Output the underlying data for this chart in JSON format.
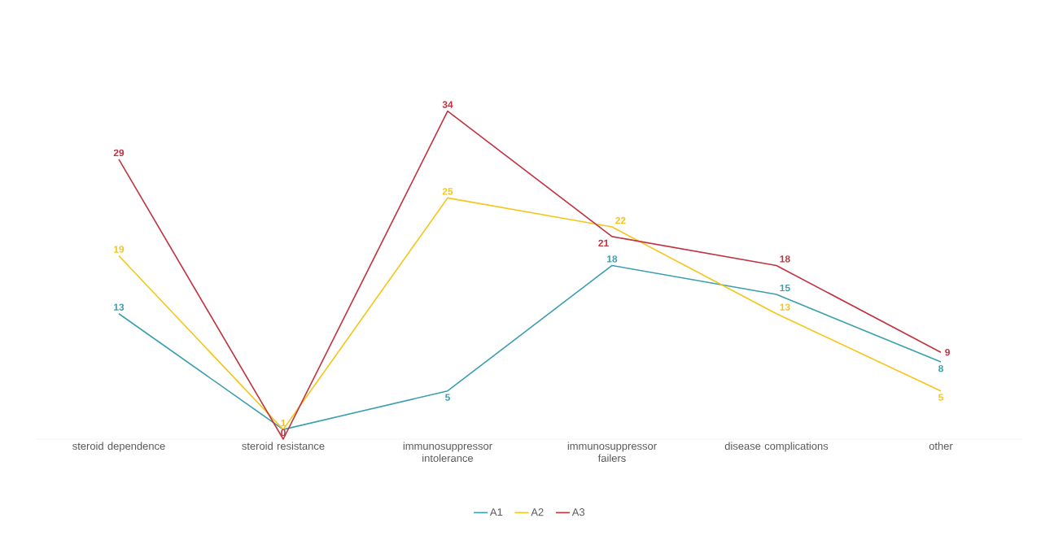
{
  "chart_data": {
    "type": "line",
    "categories": [
      "steroid dependence",
      "steroid resistance",
      "immunosuppressor intolerance",
      "immunosuppressor failers",
      "disease complications",
      "other"
    ],
    "series": [
      {
        "name": "A1",
        "color": "#3a9fae",
        "values": [
          13,
          1,
          5,
          18,
          15,
          8
        ],
        "value_labels": [
          "13",
          null,
          "5",
          "18",
          "15",
          "8"
        ]
      },
      {
        "name": "A2",
        "color": "#f5c518",
        "values": [
          19,
          1,
          25,
          22,
          13,
          5
        ],
        "value_labels": [
          "19",
          "1",
          "25",
          "22",
          "13",
          "5"
        ]
      },
      {
        "name": "A3",
        "color": "#c0333f",
        "values": [
          29,
          0,
          34,
          21,
          18,
          9
        ],
        "value_labels": [
          "29",
          "0",
          "34",
          "21",
          "18",
          "9"
        ]
      }
    ],
    "legend": "bottom",
    "grid": false,
    "marker": "none"
  }
}
